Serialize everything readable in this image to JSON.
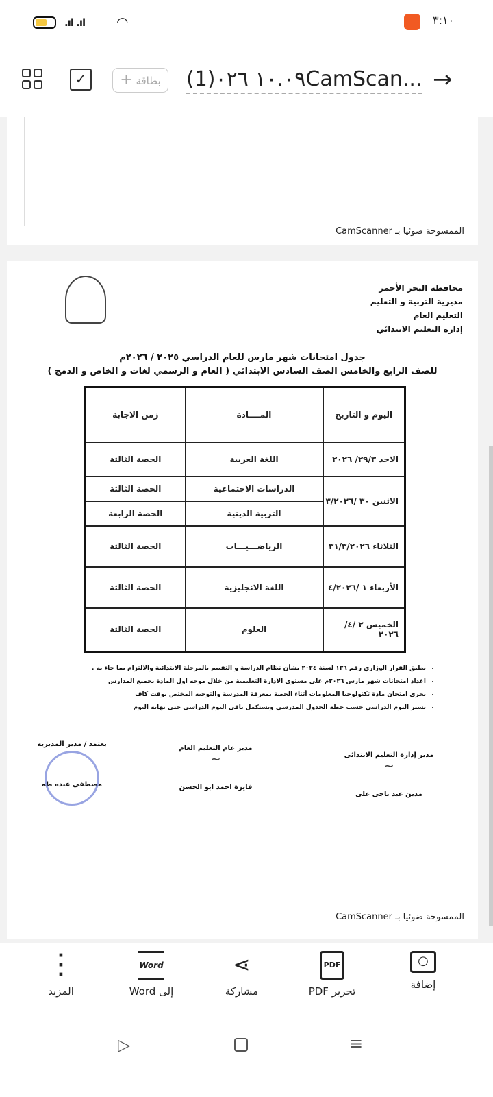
{
  "status_bar": {
    "time": "٣:١٠",
    "battery_color": "#f5c842",
    "app_badge_color": "#f15a22"
  },
  "toolbar": {
    "title": "(1)١٠.٠٩ ٠٢٦CamScan...",
    "card_button": "بطاقة",
    "card_plus": "+",
    "icons": [
      "grid-icon",
      "select-pages-icon",
      "arrow-right-icon"
    ]
  },
  "viewer": {
    "page1": {
      "scanned_label": "الممسوحة ضوئيا بـ CamScanner"
    },
    "page2": {
      "header": [
        "محافظة البحر الأحمر",
        "مديرية التربية و التعليم",
        "التعليم العام",
        "إدارة التعليم الابتدائي"
      ],
      "title_line1": "جدول امتحانات شهر مارس  للعام الدراسي  ٢٠٢٥ / ٢٠٢٦م",
      "title_line2": "للصف الرابع والخامس الصف السادس الابتدائي ( العام و الرسمي لغات و الخاص و الدمج )",
      "table": {
        "headers": [
          "اليوم و التاريخ",
          "المــــادة",
          "زمن الاجابة"
        ],
        "rows": [
          {
            "date": "الاحد  ٢٩/٣/ ٢٠٢٦",
            "subjects": [
              {
                "subject": "اللغة العربية",
                "period": "الحصة الثالثة"
              }
            ]
          },
          {
            "date": "الاثنين ٣٠ /٣/٢٠٢٦",
            "subjects": [
              {
                "subject": "الدراسات الاجتماعية",
                "period": "الحصة الثالثة"
              },
              {
                "subject": "التربية الدينية",
                "period": "الحصة الرابعة"
              }
            ]
          },
          {
            "date": "الثلاثاء  ٣١/٣/٢٠٢٦",
            "subjects": [
              {
                "subject": "الرياضـــيـــات",
                "period": "الحصة الثالثة"
              }
            ]
          },
          {
            "date": "الأربعاء ١ /٤/٢٠٢٦",
            "subjects": [
              {
                "subject": "اللغة الانجليزية",
                "period": "الحصة الثالثة"
              }
            ]
          },
          {
            "date": "الخميس ٢ /٤/ ٢٠٢٦",
            "subjects": [
              {
                "subject": "العلوم",
                "period": "الحصة الثالثة"
              }
            ]
          }
        ]
      },
      "notes": [
        "يطبق القرار الوزاري رقم ١٣٦ لسنة ٢٠٢٤ بشأن نظام الدراسة و التقييم بالمرحلة الابتدائية والالتزام بما جاء به .",
        "اعداد امتحانات شهر مارس ٢٠٢٦م على مستوى الادارة التعليمية  من خلال موجه اول المادة  بجميع المدارس",
        "يجرى امتحان مادة تكنولوجيا المعلومات أثناء الحصة بمعرفة المدرسة والتوجيه المختص بوقت كاف",
        "يسير اليوم الدراسي حسب خطة الجدول المدرسي ويستكمل باقى اليوم الدراسى حتى نهاية اليوم"
      ],
      "signatures": [
        {
          "title": "مدير إدارة التعليم  الابتدائى",
          "name": "مدين عبد ناجى على"
        },
        {
          "title": "مدير عام التعليم العام",
          "name": "فايزة احمد ابو الحسن"
        },
        {
          "title": "يعتمد / مدير المديرية",
          "name": "مصطفى عبده طه"
        }
      ],
      "scanned_label": "الممسوحة ضوئيا بـ CamScanner"
    }
  },
  "bottom_actions": [
    {
      "label": "إضافة",
      "icon": "add-camera-icon"
    },
    {
      "label": "تحرير PDF",
      "icon": "pdf-icon",
      "icon_text": "PDF"
    },
    {
      "label": "مشاركة",
      "icon": "share-icon"
    },
    {
      "label": "إلى Word",
      "icon": "word-icon",
      "icon_text": "Word"
    },
    {
      "label": "المزيد",
      "icon": "more-icon"
    }
  ]
}
